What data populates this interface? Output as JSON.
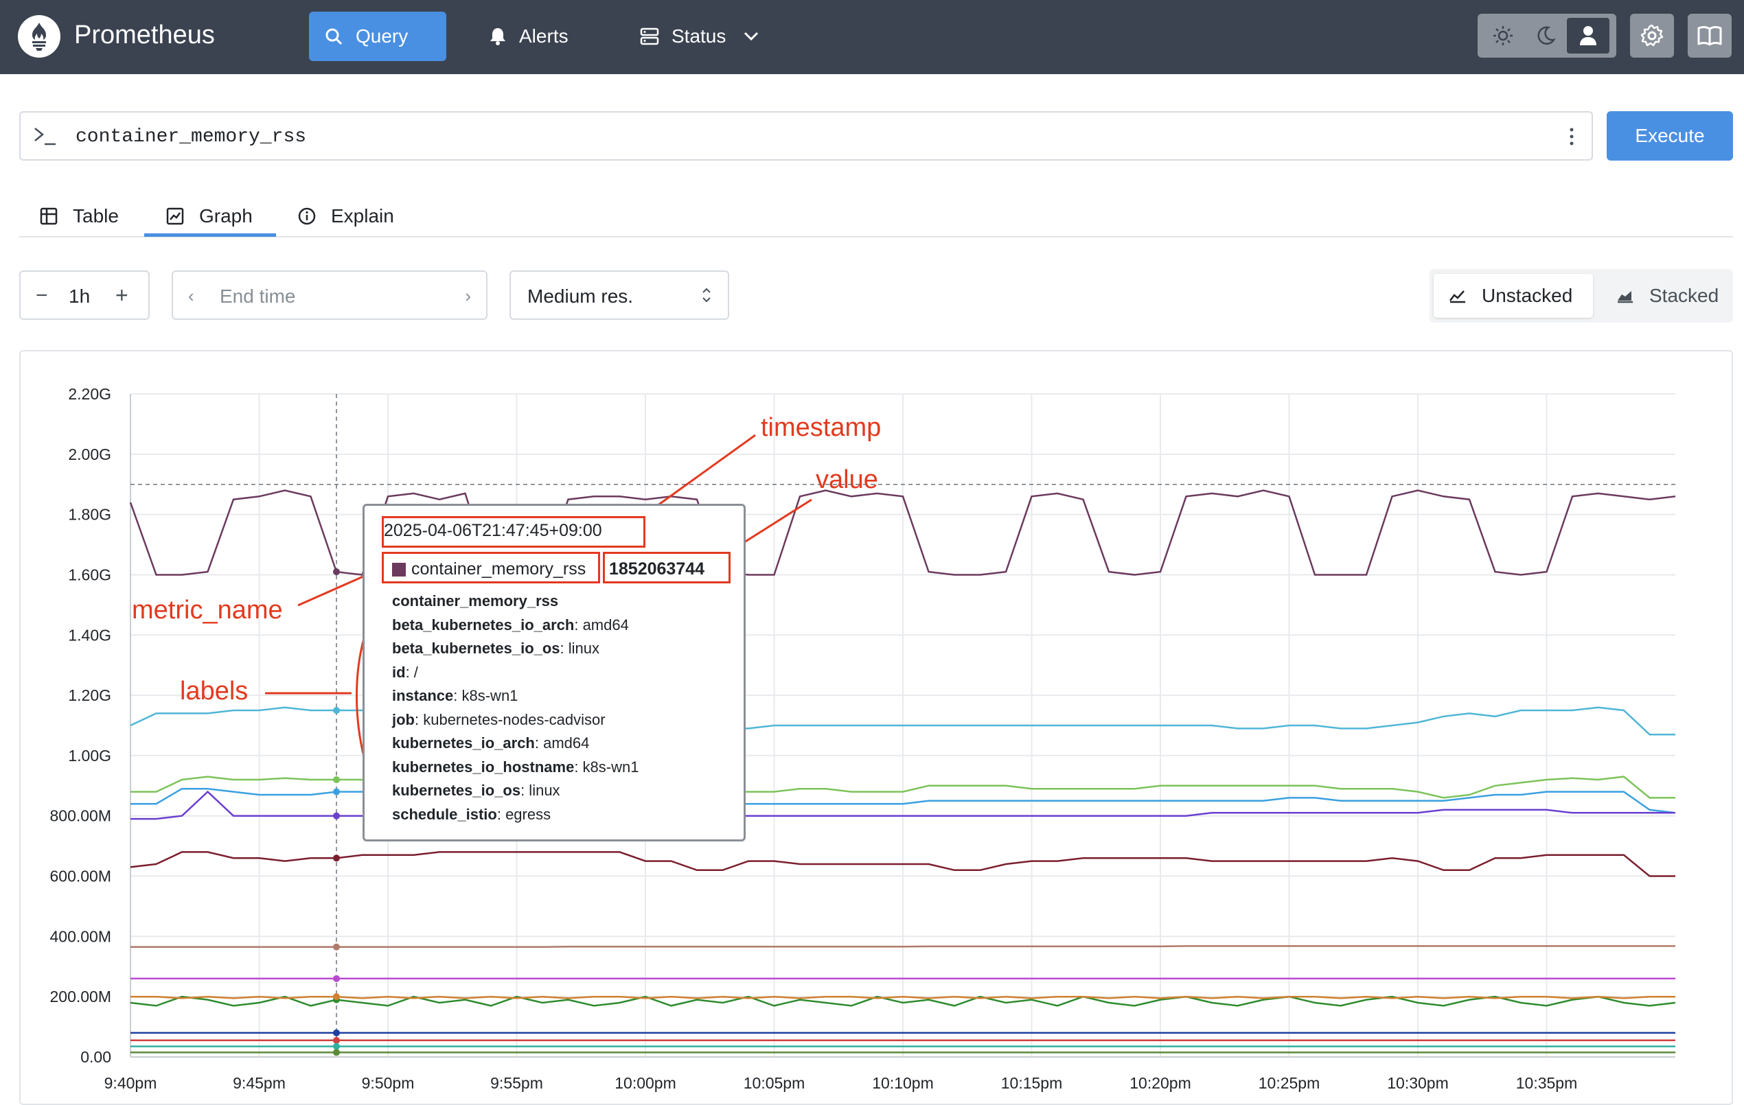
{
  "nav": {
    "brand": "Prometheus",
    "query_label": "Query",
    "alerts_label": "Alerts",
    "status_label": "Status"
  },
  "query": {
    "expression": "container_memory_rss",
    "execute_label": "Execute"
  },
  "tabs": {
    "table": "Table",
    "graph": "Graph",
    "explain": "Explain",
    "active": "graph"
  },
  "controls": {
    "range": "1h",
    "end_time_placeholder": "End time",
    "resolution": "Medium res.",
    "unstacked": "Unstacked",
    "stacked": "Stacked"
  },
  "tooltip": {
    "timestamp": "2025-04-06T21:47:45+09:00",
    "metric_name": "container_memory_rss",
    "value": "1852063744",
    "labels": [
      {
        "key": "container_memory_rss",
        "value": ""
      },
      {
        "key": "beta_kubernetes_io_arch",
        "value": "amd64"
      },
      {
        "key": "beta_kubernetes_io_os",
        "value": "linux"
      },
      {
        "key": "id",
        "value": "/"
      },
      {
        "key": "instance",
        "value": "k8s-wn1"
      },
      {
        "key": "job",
        "value": "kubernetes-nodes-cadvisor"
      },
      {
        "key": "kubernetes_io_arch",
        "value": "amd64"
      },
      {
        "key": "kubernetes_io_hostname",
        "value": "k8s-wn1"
      },
      {
        "key": "kubernetes_io_os",
        "value": "linux"
      },
      {
        "key": "schedule_istio",
        "value": "egress"
      }
    ]
  },
  "annotations": {
    "timestamp": "timestamp",
    "value": "value",
    "metric_name": "metric_name",
    "labels": "labels"
  },
  "chart_data": {
    "type": "line",
    "ylim": [
      0,
      2200000000
    ],
    "y_ticks": [
      "0.00",
      "200.00M",
      "400.00M",
      "600.00M",
      "800.00M",
      "1.00G",
      "1.20G",
      "1.40G",
      "1.60G",
      "1.80G",
      "2.00G",
      "2.20G"
    ],
    "x_ticks": [
      "9:40pm",
      "9:45pm",
      "9:50pm",
      "9:55pm",
      "10:00pm",
      "10:05pm",
      "10:10pm",
      "10:15pm",
      "10:20pm",
      "10:25pm",
      "10:30pm",
      "10:35pm"
    ],
    "x_range_minutes": [
      0,
      60
    ],
    "hover_minute": 8,
    "series": [
      {
        "color": "#6b3a5e",
        "values": [
          1840,
          1600,
          1600,
          1610,
          1850,
          1860,
          1880,
          1860,
          1610,
          1600,
          1860,
          1870,
          1850,
          1870,
          1600,
          1600,
          1600,
          1850,
          1860,
          1860,
          1850,
          1860,
          1850,
          1610,
          1600,
          1600,
          1860,
          1880,
          1860,
          1870,
          1860,
          1610,
          1600,
          1600,
          1610,
          1860,
          1870,
          1850,
          1610,
          1600,
          1610,
          1860,
          1870,
          1860,
          1880,
          1860,
          1600,
          1600,
          1600,
          1860,
          1880,
          1860,
          1850,
          1610,
          1600,
          1610,
          1860,
          1870,
          1860,
          1850,
          1860
        ]
      },
      {
        "color": "#4fb6d6",
        "values": [
          1100,
          1140,
          1140,
          1140,
          1150,
          1150,
          1160,
          1150,
          1150,
          1150,
          1150,
          1140,
          1150,
          1150,
          1160,
          1160,
          1150,
          1150,
          1150,
          1090,
          1080,
          1090,
          1090,
          1090,
          1090,
          1100,
          1100,
          1100,
          1100,
          1100,
          1100,
          1100,
          1100,
          1100,
          1100,
          1100,
          1100,
          1100,
          1100,
          1100,
          1100,
          1100,
          1100,
          1090,
          1090,
          1100,
          1100,
          1090,
          1090,
          1100,
          1110,
          1130,
          1140,
          1130,
          1150,
          1150,
          1150,
          1160,
          1150,
          1070,
          1070
        ]
      },
      {
        "color": "#7cc35a",
        "values": [
          880,
          880,
          920,
          930,
          920,
          920,
          925,
          920,
          920,
          920,
          920,
          920,
          920,
          920,
          920,
          920,
          920,
          900,
          900,
          880,
          880,
          890,
          880,
          880,
          880,
          880,
          890,
          890,
          880,
          880,
          880,
          900,
          900,
          900,
          900,
          890,
          890,
          890,
          890,
          890,
          900,
          900,
          900,
          900,
          900,
          900,
          900,
          890,
          890,
          890,
          880,
          860,
          870,
          900,
          910,
          920,
          925,
          920,
          930,
          860,
          860
        ]
      },
      {
        "color": "#3aa0e0",
        "values": [
          840,
          840,
          890,
          890,
          880,
          870,
          870,
          870,
          880,
          880,
          880,
          880,
          880,
          870,
          880,
          880,
          880,
          870,
          870,
          850,
          840,
          840,
          840,
          840,
          840,
          840,
          840,
          840,
          840,
          840,
          840,
          850,
          850,
          850,
          850,
          850,
          850,
          850,
          850,
          850,
          850,
          850,
          850,
          850,
          850,
          860,
          860,
          850,
          850,
          850,
          850,
          850,
          860,
          870,
          870,
          880,
          880,
          880,
          880,
          820,
          810
        ]
      },
      {
        "color": "#6a3fd0",
        "values": [
          790,
          790,
          800,
          880,
          800,
          800,
          800,
          800,
          800,
          800,
          800,
          800,
          800,
          800,
          800,
          800,
          800,
          800,
          800,
          800,
          800,
          800,
          800,
          800,
          800,
          800,
          800,
          800,
          800,
          800,
          800,
          800,
          800,
          800,
          800,
          800,
          800,
          800,
          800,
          800,
          800,
          800,
          810,
          810,
          810,
          810,
          810,
          810,
          810,
          810,
          810,
          820,
          820,
          820,
          820,
          820,
          810,
          810,
          810,
          810,
          810
        ]
      },
      {
        "color": "#7a1e2e",
        "values": [
          630,
          640,
          680,
          680,
          660,
          660,
          650,
          660,
          660,
          670,
          670,
          670,
          680,
          680,
          680,
          680,
          680,
          680,
          680,
          680,
          650,
          650,
          620,
          620,
          650,
          650,
          640,
          640,
          640,
          640,
          640,
          640,
          620,
          620,
          640,
          650,
          650,
          660,
          660,
          660,
          660,
          660,
          650,
          650,
          650,
          650,
          650,
          650,
          650,
          660,
          650,
          620,
          620,
          660,
          660,
          670,
          670,
          670,
          670,
          600,
          600
        ]
      },
      {
        "color": "#b07a6a",
        "values": [
          365,
          365,
          365,
          365,
          365,
          365,
          365,
          365,
          365,
          365,
          365,
          365,
          365,
          365,
          365,
          365,
          365,
          366,
          366,
          366,
          366,
          366,
          366,
          366,
          366,
          366,
          366,
          366,
          366,
          366,
          366,
          367,
          367,
          367,
          367,
          367,
          367,
          367,
          367,
          367,
          367,
          368,
          368,
          368,
          368,
          368,
          368,
          368,
          368,
          368,
          368,
          368,
          368,
          368,
          368,
          368,
          368,
          368,
          368,
          368,
          368
        ]
      },
      {
        "color": "#b84bd0",
        "values": [
          260,
          260,
          260,
          260,
          260,
          260,
          260,
          260,
          260,
          260,
          260,
          260,
          260,
          260,
          260,
          260,
          260,
          260,
          260,
          260,
          260,
          260,
          260,
          260,
          260,
          260,
          260,
          260,
          260,
          260,
          260,
          260,
          260,
          260,
          260,
          260,
          260,
          260,
          260,
          260,
          260,
          260,
          260,
          260,
          260,
          260,
          260,
          260,
          260,
          260,
          260,
          260,
          260,
          260,
          260,
          260,
          260,
          260,
          260,
          260,
          260
        ]
      },
      {
        "color": "#2e8b2e",
        "values": [
          180,
          170,
          200,
          190,
          170,
          180,
          200,
          170,
          190,
          180,
          170,
          200,
          180,
          190,
          170,
          200,
          180,
          190,
          170,
          180,
          200,
          170,
          190,
          180,
          200,
          170,
          190,
          180,
          170,
          200,
          180,
          190,
          170,
          200,
          180,
          190,
          170,
          200,
          180,
          170,
          190,
          200,
          180,
          170,
          190,
          200,
          180,
          170,
          190,
          200,
          180,
          170,
          190,
          200,
          180,
          170,
          190,
          200,
          180,
          170,
          180
        ]
      },
      {
        "color": "#d08030",
        "values": [
          200,
          200,
          195,
          200,
          195,
          200,
          195,
          200,
          200,
          195,
          200,
          195,
          200,
          195,
          200,
          195,
          200,
          195,
          200,
          200,
          195,
          200,
          195,
          200,
          195,
          200,
          195,
          200,
          200,
          195,
          200,
          195,
          200,
          195,
          200,
          195,
          200,
          200,
          195,
          200,
          195,
          200,
          195,
          200,
          195,
          200,
          200,
          195,
          200,
          195,
          200,
          195,
          200,
          195,
          200,
          200,
          195,
          200,
          195,
          200,
          200
        ]
      },
      {
        "color": "#1f3fa0",
        "values": [
          80,
          80,
          80,
          80,
          80,
          80,
          80,
          80,
          80,
          80,
          80,
          80,
          80,
          80,
          80,
          80,
          80,
          80,
          80,
          80,
          80,
          80,
          80,
          80,
          80,
          80,
          80,
          80,
          80,
          80,
          80,
          80,
          80,
          80,
          80,
          80,
          80,
          80,
          80,
          80,
          80,
          80,
          80,
          80,
          80,
          80,
          80,
          80,
          80,
          80,
          80,
          80,
          80,
          80,
          80,
          80,
          80,
          80,
          80,
          80,
          80
        ]
      },
      {
        "color": "#d04040",
        "values": [
          55,
          55,
          55,
          55,
          55,
          55,
          55,
          55,
          55,
          55,
          55,
          55,
          55,
          55,
          55,
          55,
          55,
          55,
          55,
          55,
          55,
          55,
          55,
          55,
          55,
          55,
          55,
          55,
          55,
          55,
          55,
          55,
          55,
          55,
          55,
          55,
          55,
          55,
          55,
          55,
          55,
          55,
          55,
          55,
          55,
          55,
          55,
          55,
          55,
          55,
          55,
          55,
          55,
          55,
          55,
          55,
          55,
          55,
          55,
          55,
          55
        ]
      },
      {
        "color": "#30b0a0",
        "values": [
          35,
          35,
          35,
          35,
          35,
          35,
          35,
          35,
          35,
          35,
          35,
          35,
          35,
          35,
          35,
          35,
          35,
          35,
          35,
          35,
          35,
          35,
          35,
          35,
          35,
          35,
          35,
          35,
          35,
          35,
          35,
          35,
          35,
          35,
          35,
          35,
          35,
          35,
          35,
          35,
          35,
          35,
          35,
          35,
          35,
          35,
          35,
          35,
          35,
          35,
          35,
          35,
          35,
          35,
          35,
          35,
          35,
          35,
          35,
          35,
          35
        ]
      },
      {
        "color": "#5a8a3a",
        "values": [
          15,
          15,
          15,
          15,
          15,
          15,
          15,
          15,
          15,
          15,
          15,
          15,
          15,
          15,
          15,
          15,
          15,
          15,
          15,
          15,
          15,
          15,
          15,
          15,
          15,
          15,
          15,
          15,
          15,
          15,
          15,
          15,
          15,
          15,
          15,
          15,
          15,
          15,
          15,
          15,
          15,
          15,
          15,
          15,
          15,
          15,
          15,
          15,
          15,
          15,
          15,
          15,
          15,
          15,
          15,
          15,
          15,
          15,
          15,
          15,
          15
        ]
      }
    ]
  }
}
